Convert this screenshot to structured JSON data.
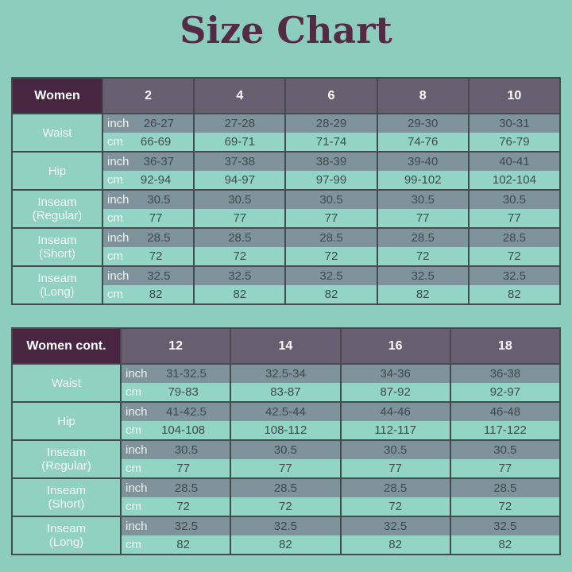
{
  "title": "Size Chart",
  "unit_labels": {
    "inch": "inch",
    "cm": "cm"
  },
  "colors": {
    "background": "#8dcdbe",
    "title": "#552a45",
    "header_label_bg": "#482641",
    "header_size_bg": "#675f6f",
    "inch_row_bg": "#7e939a",
    "cm_row_bg": "#93d5c5",
    "label_cell_bg": "#90d1c2",
    "border": "#434a50",
    "value_text": "#3f4a4e",
    "light_text": "#ffffff"
  },
  "chart_data": {
    "type": "table",
    "title": "Size Chart",
    "tables": [
      {
        "corner_label": "Women",
        "sizes": [
          "2",
          "4",
          "6",
          "8",
          "10"
        ],
        "row_groups": [
          {
            "label_lines": [
              "Waist"
            ],
            "inch": [
              "26-27",
              "27-28",
              "28-29",
              "29-30",
              "30-31"
            ],
            "cm": [
              "66-69",
              "69-71",
              "71-74",
              "74-76",
              "76-79"
            ]
          },
          {
            "label_lines": [
              "Hip"
            ],
            "inch": [
              "36-37",
              "37-38",
              "38-39",
              "39-40",
              "40-41"
            ],
            "cm": [
              "92-94",
              "94-97",
              "97-99",
              "99-102",
              "102-104"
            ]
          },
          {
            "label_lines": [
              "Inseam",
              "(Regular)"
            ],
            "inch": [
              "30.5",
              "30.5",
              "30.5",
              "30.5",
              "30.5"
            ],
            "cm": [
              "77",
              "77",
              "77",
              "77",
              "77"
            ]
          },
          {
            "label_lines": [
              "Inseam",
              "(Short)"
            ],
            "inch": [
              "28.5",
              "28.5",
              "28.5",
              "28.5",
              "28.5"
            ],
            "cm": [
              "72",
              "72",
              "72",
              "72",
              "72"
            ]
          },
          {
            "label_lines": [
              "Inseam",
              "(Long)"
            ],
            "inch": [
              "32.5",
              "32.5",
              "32.5",
              "32.5",
              "32.5"
            ],
            "cm": [
              "82",
              "82",
              "82",
              "82",
              "82"
            ]
          }
        ]
      },
      {
        "corner_label": "Women cont.",
        "sizes": [
          "12",
          "14",
          "16",
          "18"
        ],
        "row_groups": [
          {
            "label_lines": [
              "Waist"
            ],
            "inch": [
              "31-32.5",
              "32.5-34",
              "34-36",
              "36-38"
            ],
            "cm": [
              "79-83",
              "83-87",
              "87-92",
              "92-97"
            ]
          },
          {
            "label_lines": [
              "Hip"
            ],
            "inch": [
              "41-42.5",
              "42.5-44",
              "44-46",
              "46-48"
            ],
            "cm": [
              "104-108",
              "108-112",
              "112-117",
              "117-122"
            ]
          },
          {
            "label_lines": [
              "Inseam",
              "(Regular)"
            ],
            "inch": [
              "30.5",
              "30.5",
              "30.5",
              "30.5"
            ],
            "cm": [
              "77",
              "77",
              "77",
              "77"
            ]
          },
          {
            "label_lines": [
              "Inseam",
              "(Short)"
            ],
            "inch": [
              "28.5",
              "28.5",
              "28.5",
              "28.5"
            ],
            "cm": [
              "72",
              "72",
              "72",
              "72"
            ]
          },
          {
            "label_lines": [
              "Inseam",
              "(Long)"
            ],
            "inch": [
              "32.5",
              "32.5",
              "32.5",
              "32.5"
            ],
            "cm": [
              "82",
              "82",
              "82",
              "82"
            ]
          }
        ]
      }
    ]
  }
}
